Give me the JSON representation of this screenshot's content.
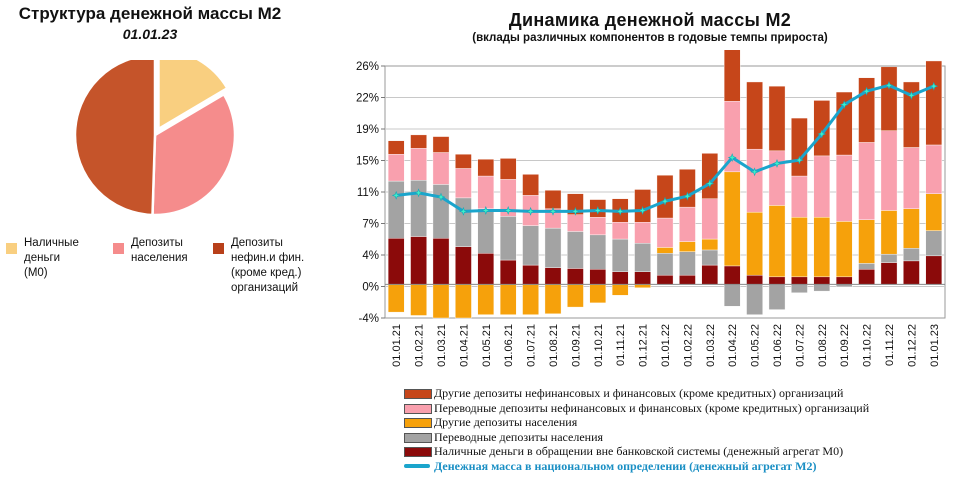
{
  "pie": {
    "title": "Структура денежной массы М2",
    "date": "01.01.23",
    "slices": [
      {
        "label": "Наличные деньги (М0)",
        "value": 16.5,
        "color": "#f9cf80"
      },
      {
        "label": "Депозиты населения",
        "value": 34.0,
        "color": "#f58c8c"
      },
      {
        "label": "Депозиты нефин.и фин. (кроме кред.) организаций",
        "value": 49.5,
        "color": "#c5542a"
      }
    ],
    "legend": [
      {
        "lines": [
          "Наличные",
          "деньги",
          "(М0)"
        ],
        "color": "#f9cf80"
      },
      {
        "lines": [
          "Депозиты",
          "населения"
        ],
        "color": "#f58c8c"
      },
      {
        "lines": [
          "Депозиты",
          "нефин.и фин.",
          "(кроме кред.)",
          "организаций"
        ],
        "color": "#b8401a"
      }
    ]
  },
  "chart_data": {
    "type": "bar",
    "title": "Динамика денежной массы М2",
    "subtitle": "(вклады различных компонентов в годовые темпы прироста)",
    "y_tick_labels": [
      "-4%",
      "0%",
      "4%",
      "7%",
      "11%",
      "15%",
      "19%",
      "22%",
      "26%"
    ],
    "ylim": [
      -4,
      26
    ],
    "grid": true,
    "categories": [
      "01.01.21",
      "01.02.21",
      "01.03.21",
      "01.04.21",
      "01.05.21",
      "01.06.21",
      "01.07.21",
      "01.08.21",
      "01.09.21",
      "01.10.21",
      "01.11.21",
      "01.12.21",
      "01.01.22",
      "01.02.22",
      "01.03.22",
      "01.04.22",
      "01.05.22",
      "01.06.22",
      "01.07.22",
      "01.08.22",
      "01.09.22",
      "01.10.22",
      "01.11.22",
      "01.12.22",
      "01.01.23"
    ],
    "series": [
      {
        "name": "Наличные деньги в обращении вне банковской системы (денежный агрегат М0)",
        "color": "#8b0a0a",
        "values": [
          5.5,
          5.7,
          5.5,
          4.5,
          3.7,
          2.9,
          2.3,
          2.0,
          1.9,
          1.8,
          1.5,
          1.5,
          1.1,
          1.1,
          2.3,
          2.2,
          1.1,
          0.9,
          0.9,
          0.9,
          0.9,
          1.8,
          2.6,
          2.8,
          3.4
        ]
      },
      {
        "name": "Переводные депозиты населения",
        "color": "#a3a3a3",
        "values": [
          6.8,
          6.7,
          6.4,
          5.8,
          5.3,
          5.2,
          4.7,
          4.7,
          4.4,
          4.1,
          3.9,
          3.4,
          2.6,
          2.8,
          1.8,
          -2.6,
          -3.6,
          -3.0,
          -1.0,
          -0.8,
          -0.3,
          0.7,
          1.0,
          1.5,
          3.0
        ]
      },
      {
        "name": "Другие депозиты населения",
        "color": "#f6a10b",
        "values": [
          -3.3,
          -3.7,
          -4.0,
          -4.0,
          -3.6,
          -3.6,
          -3.6,
          -3.5,
          -2.7,
          -2.2,
          -1.3,
          -0.4,
          0.7,
          1.2,
          1.3,
          11.2,
          7.5,
          8.5,
          7.1,
          7.1,
          6.6,
          5.2,
          5.2,
          4.7,
          4.4
        ]
      },
      {
        "name": "Переводные депозиты нефинансовых и финансовых (кроме кредитных)  организаций",
        "color": "#f9a0ae",
        "values": [
          3.2,
          3.8,
          3.8,
          3.5,
          3.9,
          4.4,
          3.6,
          2.3,
          2.0,
          2.1,
          2.0,
          2.5,
          3.5,
          4.1,
          4.8,
          8.4,
          7.5,
          6.5,
          4.9,
          7.3,
          7.9,
          9.2,
          9.5,
          7.3,
          5.8
        ]
      },
      {
        "name": "Другие депозиты нефинансовых и финансовых (кроме кредитных)  организаций",
        "color": "#c6461a",
        "values": [
          1.6,
          1.6,
          1.9,
          1.7,
          2.0,
          2.5,
          2.5,
          2.2,
          2.5,
          2.1,
          2.8,
          3.9,
          5.1,
          4.5,
          5.4,
          6.2,
          8.0,
          7.7,
          6.9,
          6.6,
          7.5,
          7.7,
          7.6,
          7.8,
          10.0
        ]
      }
    ],
    "line": {
      "name": "Денежная масса в национальном  определении  (денежный агрегат  М2)",
      "color": "#1ba5cc",
      "values": [
        10.6,
        10.9,
        10.4,
        8.7,
        8.8,
        8.8,
        8.7,
        8.7,
        8.7,
        8.8,
        8.7,
        8.8,
        9.9,
        10.5,
        12.0,
        15.1,
        13.4,
        14.4,
        14.8,
        17.9,
        21.4,
        23.0,
        23.7,
        22.5,
        23.6
      ]
    },
    "legend": [
      {
        "name": "Другие депозиты нефинансовых и финансовых (кроме кредитных)  организаций",
        "color": "#c6461a",
        "kind": "bar"
      },
      {
        "name": "Переводные депозиты нефинансовых и финансовых (кроме кредитных)  организаций",
        "color": "#f9a0ae",
        "kind": "bar"
      },
      {
        "name": "Другие депозиты населения",
        "color": "#f6a10b",
        "kind": "bar"
      },
      {
        "name": "Переводные депозиты населения",
        "color": "#a3a3a3",
        "kind": "bar"
      },
      {
        "name": "Наличные деньги в обращении вне банковской системы (денежный агрегат М0)",
        "color": "#8b0a0a",
        "kind": "bar"
      },
      {
        "name": "Денежная масса в национальном  определении  (денежный агрегат  М2)",
        "color": "#1ba5cc",
        "kind": "line"
      }
    ]
  }
}
